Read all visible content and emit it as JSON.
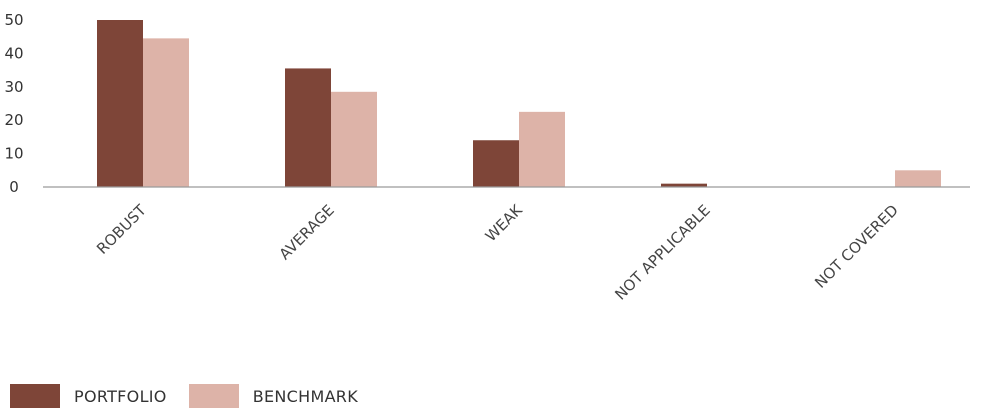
{
  "chart_data": {
    "type": "bar",
    "categories": [
      "ROBUST",
      "AVERAGE",
      "WEAK",
      "NOT APPLICABLE",
      "NOT COVERED"
    ],
    "series": [
      {
        "name": "PORTFOLIO",
        "color": "#7e4538",
        "values": [
          50,
          35.5,
          14,
          1,
          0
        ]
      },
      {
        "name": "BENCHMARK",
        "color": "#ddb3a8",
        "values": [
          44.5,
          28.5,
          22.5,
          0,
          5
        ]
      }
    ],
    "yticks": [
      0,
      10,
      20,
      30,
      40,
      50
    ],
    "ylim": [
      0,
      50
    ],
    "grid": false,
    "legend": "bottom-left"
  },
  "legend": {
    "items": [
      {
        "label": "PORTFOLIO",
        "color": "#7e4538"
      },
      {
        "label": "BENCHMARK",
        "color": "#ddb3a8"
      }
    ]
  }
}
